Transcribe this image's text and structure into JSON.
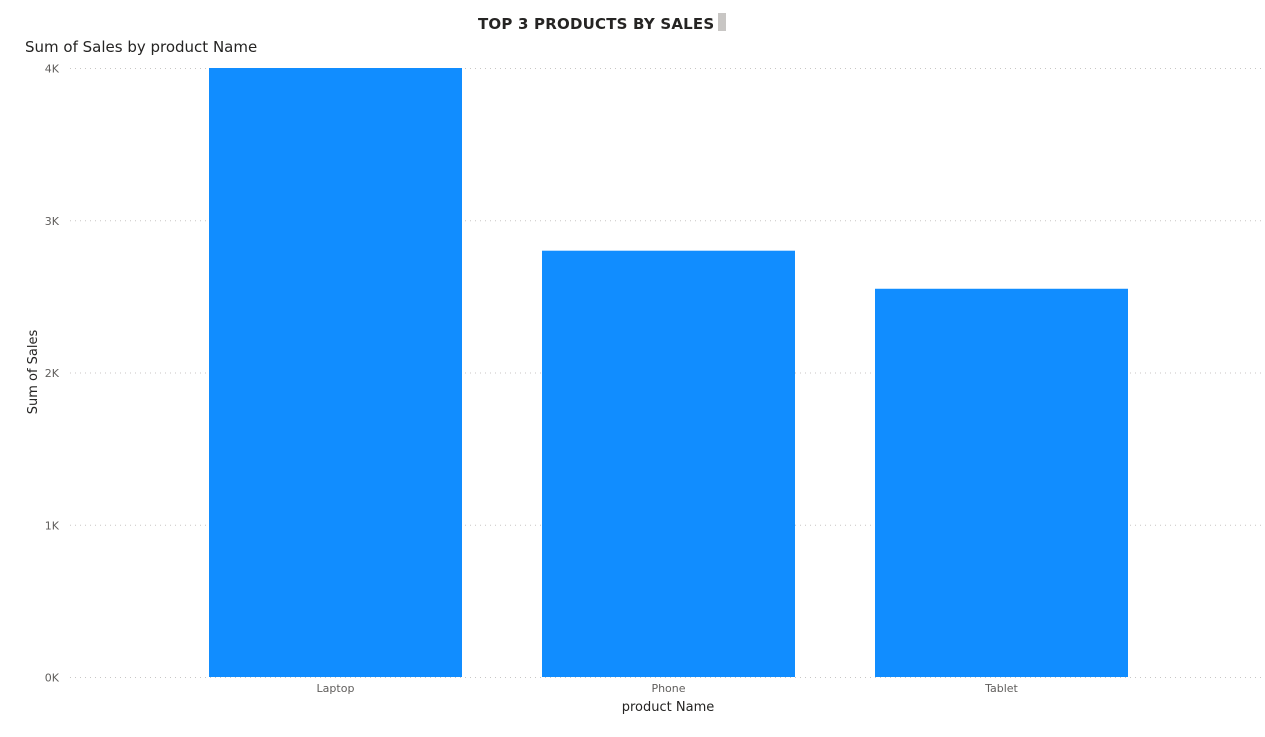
{
  "header": {
    "title": "TOP 3 PRODUCTS BY SALES"
  },
  "visual": {
    "title": "Sum of Sales by product Name"
  },
  "colors": {
    "bar": "#118DFF",
    "handle": "#c8c6c4"
  },
  "chart_data": {
    "type": "bar",
    "title": "Sum of Sales by product Name",
    "xlabel": "product Name",
    "ylabel": "Sum of Sales",
    "categories": [
      "Laptop",
      "Phone",
      "Tablet"
    ],
    "values": [
      4000,
      2800,
      2550
    ],
    "ylim": [
      0,
      4000
    ],
    "yticks": [
      0,
      1000,
      2000,
      3000,
      4000
    ],
    "ytick_labels": [
      "0K",
      "1K",
      "2K",
      "3K",
      "4K"
    ],
    "grid": true
  }
}
